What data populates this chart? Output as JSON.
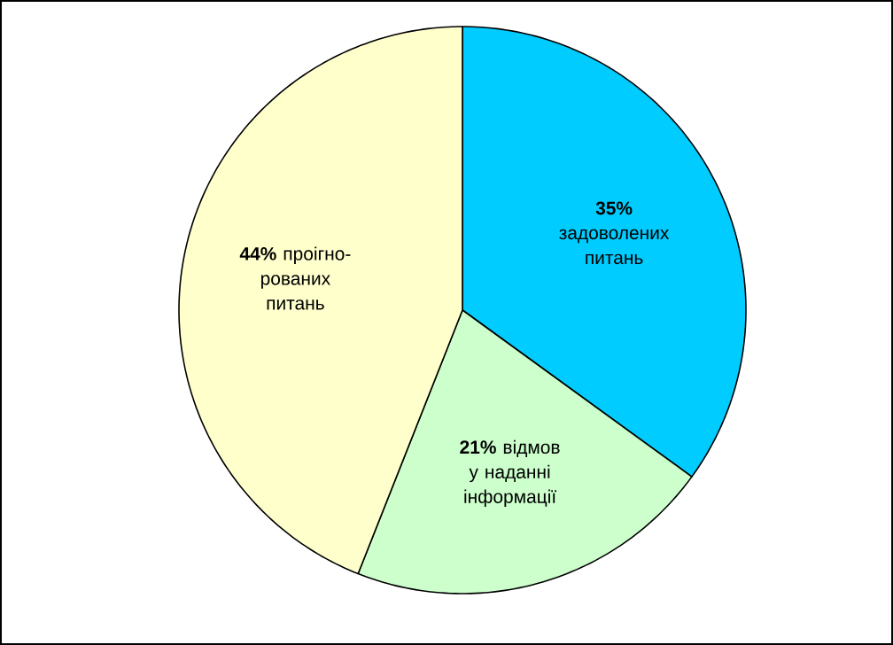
{
  "chart_data": {
    "type": "pie",
    "categories": [
      "задоволених питань",
      "відмов у наданні інформації",
      "проігно-рованих питань"
    ],
    "values": [
      35,
      21,
      44
    ],
    "value_labels": [
      "35%",
      "21%",
      "44%"
    ],
    "colors": [
      "#00ccff",
      "#ccffcc",
      "#ffffcc"
    ]
  }
}
